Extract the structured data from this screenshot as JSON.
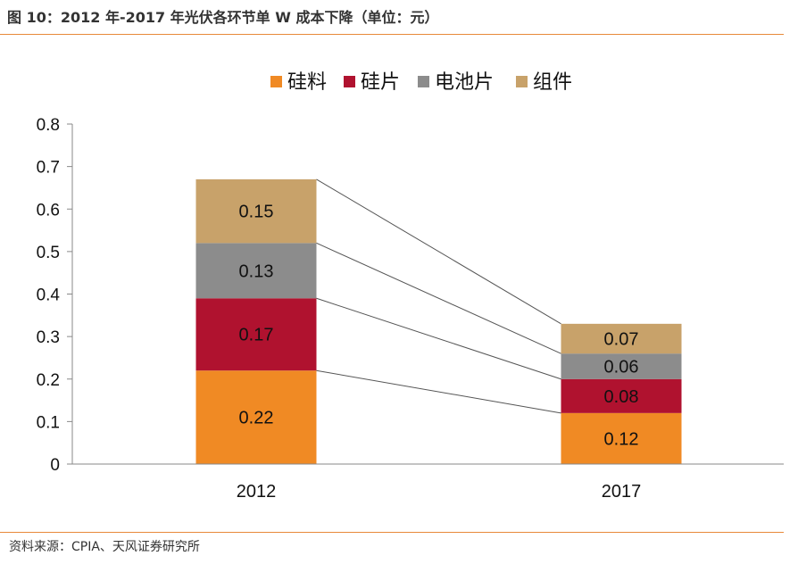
{
  "header": {
    "title": "图 10：2012 年-2017 年光伏各环节单 W 成本下降（单位：元）"
  },
  "footer": {
    "source": "资料来源：CPIA、天风证券研究所"
  },
  "chart_data": {
    "type": "bar",
    "stacked": true,
    "categories": [
      "2012",
      "2017"
    ],
    "series": [
      {
        "name": "硅料",
        "values": [
          0.22,
          0.12
        ],
        "labels": [
          "0.22",
          "0.12"
        ],
        "color": "#F08A24"
      },
      {
        "name": "硅片",
        "values": [
          0.17,
          0.08
        ],
        "labels": [
          "0.17",
          "0.08"
        ],
        "color": "#B0122F"
      },
      {
        "name": "电池片",
        "values": [
          0.13,
          0.06
        ],
        "labels": [
          "0.13",
          "0.06"
        ],
        "color": "#8C8C8C"
      },
      {
        "name": "组件",
        "values": [
          0.15,
          0.07
        ],
        "labels": [
          "0.15",
          "0.07"
        ],
        "color": "#C8A26A"
      }
    ],
    "ylim": [
      0,
      0.8
    ],
    "yticks": [
      "0",
      "0.1",
      "0.2",
      "0.3",
      "0.4",
      "0.5",
      "0.6",
      "0.7",
      "0.8"
    ],
    "legend": "top-center",
    "connector_lines": true,
    "grid": false
  }
}
